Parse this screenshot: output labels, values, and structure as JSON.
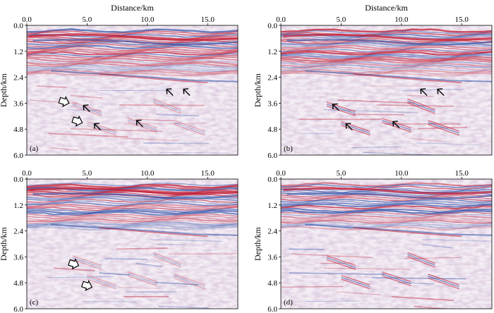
{
  "figure": {
    "x_axis_title": "Distance/km",
    "y_axis_title": "Depth/km",
    "x_ticks": [
      "0.0",
      "5.0",
      "10.0",
      "15.0"
    ],
    "x_tick_values": [
      0,
      5,
      10,
      15
    ],
    "y_ticks": [
      "0.0",
      "1.2",
      "2.4",
      "3.6",
      "4.8",
      "6.0"
    ],
    "y_tick_values": [
      0,
      1.2,
      2.4,
      3.6,
      4.8,
      6.0
    ],
    "x_range_km": [
      0,
      17.5
    ],
    "y_range_km": [
      0,
      6.0
    ],
    "colors": {
      "positive": "#c0142c",
      "negative": "#2a4ea8",
      "mid": "#f4eef4",
      "arrow": "#000000"
    },
    "panels": [
      {
        "id": "a",
        "label": "(a)",
        "show_x_title": true,
        "arrows": [
          {
            "type": "line",
            "x_km": 4.7,
            "y_km": 3.7
          },
          {
            "type": "line",
            "x_km": 5.6,
            "y_km": 4.55
          },
          {
            "type": "line",
            "x_km": 9.1,
            "y_km": 4.4
          },
          {
            "type": "line",
            "x_km": 11.6,
            "y_km": 2.95
          },
          {
            "type": "line",
            "x_km": 13.0,
            "y_km": 2.95
          },
          {
            "type": "hollow",
            "x_km": 3.5,
            "y_km": 3.6
          },
          {
            "type": "hollow",
            "x_km": 4.6,
            "y_km": 4.5
          }
        ]
      },
      {
        "id": "b",
        "label": "(b)",
        "show_x_title": true,
        "arrows": [
          {
            "type": "line",
            "x_km": 4.3,
            "y_km": 3.65
          },
          {
            "type": "line",
            "x_km": 5.4,
            "y_km": 4.55
          },
          {
            "type": "line",
            "x_km": 9.3,
            "y_km": 4.45
          },
          {
            "type": "line",
            "x_km": 11.6,
            "y_km": 2.95
          },
          {
            "type": "line",
            "x_km": 13.0,
            "y_km": 2.95
          }
        ]
      },
      {
        "id": "c",
        "label": "(c)",
        "show_x_title": false,
        "arrows": [
          {
            "type": "hollow",
            "x_km": 4.3,
            "y_km": 4.0
          },
          {
            "type": "hollow",
            "x_km": 5.4,
            "y_km": 5.0
          }
        ]
      },
      {
        "id": "d",
        "label": "(d)",
        "show_x_title": false,
        "arrows": []
      }
    ]
  }
}
